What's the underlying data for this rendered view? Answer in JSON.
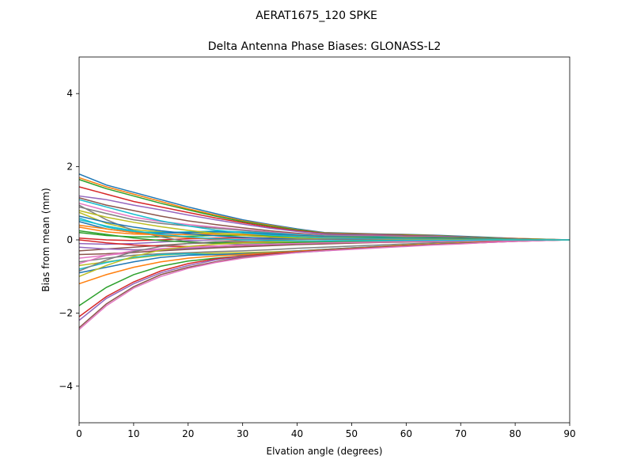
{
  "chart_data": {
    "type": "line",
    "suptitle": "AERAT1675_120   SPKE",
    "title": "Delta Antenna Phase Biases: GLONASS-L2",
    "xlabel": "Elvation angle (degrees)",
    "ylabel": "Bias from mean (mm)",
    "xlim": [
      0,
      90
    ],
    "ylim": [
      -5,
      5
    ],
    "xticks": [
      0,
      10,
      20,
      30,
      40,
      50,
      60,
      70,
      80,
      90
    ],
    "yticks": [
      -4,
      -2,
      0,
      2,
      4
    ],
    "ytick_labels": [
      "−4",
      "−2",
      "0",
      "2",
      "4"
    ],
    "grid": false,
    "legend": "none",
    "x": [
      0,
      5,
      10,
      15,
      20,
      25,
      30,
      35,
      40,
      45,
      50,
      55,
      60,
      65,
      70,
      75,
      80,
      85,
      90
    ],
    "palette": [
      "#1f77b4",
      "#ff7f0e",
      "#2ca02c",
      "#d62728",
      "#9467bd",
      "#8c564b",
      "#e377c2",
      "#7f7f7f",
      "#bcbd22",
      "#17becf"
    ],
    "series": [
      {
        "values": [
          1.8,
          1.5,
          1.3,
          1.1,
          0.9,
          0.72,
          0.55,
          0.42,
          0.3,
          0.2,
          0.18,
          0.16,
          0.15,
          0.13,
          0.1,
          0.07,
          0.04,
          0.02,
          0.0
        ]
      },
      {
        "values": [
          1.7,
          1.45,
          1.25,
          1.05,
          0.85,
          0.68,
          0.52,
          0.4,
          0.28,
          0.19,
          0.17,
          0.15,
          0.14,
          0.12,
          0.09,
          0.06,
          0.04,
          0.02,
          0.0
        ]
      },
      {
        "values": [
          1.65,
          1.4,
          1.2,
          1.0,
          0.82,
          0.65,
          0.5,
          0.38,
          0.27,
          0.18,
          0.16,
          0.14,
          0.13,
          0.11,
          0.09,
          0.06,
          0.03,
          0.01,
          0.0
        ]
      },
      {
        "values": [
          1.45,
          1.25,
          1.05,
          0.9,
          0.75,
          0.6,
          0.47,
          0.35,
          0.25,
          0.17,
          0.15,
          0.14,
          0.12,
          0.1,
          0.08,
          0.05,
          0.03,
          0.01,
          0.0
        ]
      },
      {
        "values": [
          1.2,
          1.1,
          0.95,
          0.82,
          0.68,
          0.55,
          0.43,
          0.32,
          0.23,
          0.16,
          0.14,
          0.13,
          0.11,
          0.1,
          0.08,
          0.05,
          0.03,
          0.01,
          0.0
        ]
      },
      {
        "values": [
          1.15,
          0.95,
          0.8,
          0.65,
          0.52,
          0.42,
          0.33,
          0.25,
          0.18,
          0.13,
          0.12,
          0.11,
          0.1,
          0.09,
          0.07,
          0.05,
          0.03,
          0.01,
          0.0
        ]
      },
      {
        "values": [
          1.0,
          0.8,
          0.62,
          0.5,
          0.42,
          0.35,
          0.28,
          0.22,
          0.16,
          0.12,
          0.11,
          0.1,
          0.09,
          0.08,
          0.06,
          0.04,
          0.02,
          0.01,
          0.0
        ]
      },
      {
        "values": [
          0.9,
          0.72,
          0.55,
          0.45,
          0.38,
          0.32,
          0.26,
          0.2,
          0.15,
          0.11,
          0.1,
          0.09,
          0.08,
          0.07,
          0.06,
          0.04,
          0.02,
          0.01,
          0.0
        ]
      },
      {
        "values": [
          0.75,
          0.45,
          0.28,
          0.22,
          0.2,
          0.18,
          0.16,
          0.14,
          0.12,
          0.1,
          0.09,
          0.08,
          0.07,
          0.06,
          0.05,
          0.03,
          0.02,
          0.01,
          0.0
        ]
      },
      {
        "values": [
          0.6,
          0.35,
          0.22,
          0.2,
          0.22,
          0.24,
          0.22,
          0.18,
          0.14,
          0.1,
          0.09,
          0.08,
          0.07,
          0.06,
          0.05,
          0.03,
          0.02,
          0.01,
          0.0
        ]
      },
      {
        "values": [
          0.5,
          0.3,
          0.2,
          0.18,
          0.2,
          0.22,
          0.2,
          0.16,
          0.12,
          0.09,
          0.08,
          0.07,
          0.07,
          0.06,
          0.05,
          0.03,
          0.02,
          0.01,
          0.0
        ]
      },
      {
        "values": [
          0.35,
          0.22,
          0.16,
          0.14,
          0.15,
          0.16,
          0.15,
          0.12,
          0.1,
          0.07,
          0.07,
          0.06,
          0.06,
          0.05,
          0.04,
          0.03,
          0.02,
          0.01,
          0.0
        ]
      },
      {
        "values": [
          0.2,
          0.12,
          0.08,
          0.08,
          0.1,
          0.12,
          0.12,
          0.1,
          0.08,
          0.06,
          0.06,
          0.06,
          0.05,
          0.05,
          0.04,
          0.03,
          0.02,
          0.01,
          0.0
        ]
      },
      {
        "values": [
          0.05,
          0.0,
          -0.02,
          0.0,
          0.03,
          0.05,
          0.06,
          0.05,
          0.04,
          0.03,
          0.03,
          0.03,
          0.03,
          0.03,
          0.02,
          0.02,
          0.01,
          0.0,
          0.0
        ]
      },
      {
        "values": [
          -0.1,
          -0.12,
          -0.1,
          -0.06,
          -0.02,
          0.0,
          0.02,
          0.02,
          0.02,
          0.02,
          0.02,
          0.02,
          0.02,
          0.02,
          0.02,
          0.01,
          0.01,
          0.0,
          0.0
        ]
      },
      {
        "values": [
          -0.3,
          -0.25,
          -0.2,
          -0.15,
          -0.1,
          -0.08,
          -0.06,
          -0.05,
          -0.04,
          -0.03,
          -0.02,
          -0.02,
          -0.01,
          -0.01,
          -0.01,
          0.0,
          0.0,
          0.0,
          0.0
        ]
      },
      {
        "values": [
          -0.5,
          -0.42,
          -0.35,
          -0.28,
          -0.22,
          -0.18,
          -0.15,
          -0.12,
          -0.1,
          -0.08,
          -0.06,
          -0.05,
          -0.04,
          -0.03,
          -0.02,
          -0.01,
          0.0,
          0.0,
          0.0
        ]
      },
      {
        "values": [
          -0.6,
          -0.5,
          -0.42,
          -0.38,
          -0.35,
          -0.32,
          -0.3,
          -0.27,
          -0.23,
          -0.2,
          -0.17,
          -0.14,
          -0.11,
          -0.08,
          -0.06,
          -0.04,
          -0.02,
          -0.01,
          0.0
        ]
      },
      {
        "values": [
          -0.7,
          -0.6,
          -0.5,
          -0.42,
          -0.38,
          -0.36,
          -0.35,
          -0.33,
          -0.3,
          -0.26,
          -0.22,
          -0.18,
          -0.14,
          -0.11,
          -0.08,
          -0.05,
          -0.03,
          -0.01,
          0.0
        ]
      },
      {
        "values": [
          -0.8,
          -0.62,
          -0.48,
          -0.4,
          -0.38,
          -0.4,
          -0.42,
          -0.4,
          -0.35,
          -0.3,
          -0.25,
          -0.2,
          -0.16,
          -0.12,
          -0.09,
          -0.06,
          -0.03,
          -0.01,
          0.0
        ]
      },
      {
        "values": [
          -0.9,
          -0.75,
          -0.6,
          -0.48,
          -0.42,
          -0.4,
          -0.38,
          -0.35,
          -0.3,
          -0.26,
          -0.22,
          -0.18,
          -0.15,
          -0.12,
          -0.09,
          -0.06,
          -0.03,
          -0.01,
          0.0
        ]
      },
      {
        "values": [
          -1.2,
          -0.95,
          -0.75,
          -0.6,
          -0.5,
          -0.44,
          -0.4,
          -0.36,
          -0.31,
          -0.27,
          -0.23,
          -0.19,
          -0.15,
          -0.12,
          -0.09,
          -0.06,
          -0.03,
          -0.01,
          0.0
        ]
      },
      {
        "values": [
          -1.8,
          -1.3,
          -0.95,
          -0.72,
          -0.58,
          -0.5,
          -0.44,
          -0.38,
          -0.33,
          -0.28,
          -0.24,
          -0.2,
          -0.16,
          -0.13,
          -0.1,
          -0.06,
          -0.03,
          -0.01,
          0.0
        ]
      },
      {
        "values": [
          -2.1,
          -1.55,
          -1.15,
          -0.85,
          -0.65,
          -0.52,
          -0.44,
          -0.38,
          -0.33,
          -0.28,
          -0.24,
          -0.2,
          -0.16,
          -0.13,
          -0.1,
          -0.06,
          -0.03,
          -0.01,
          0.0
        ]
      },
      {
        "values": [
          -2.2,
          -1.6,
          -1.2,
          -0.9,
          -0.7,
          -0.55,
          -0.46,
          -0.4,
          -0.34,
          -0.29,
          -0.25,
          -0.21,
          -0.17,
          -0.13,
          -0.1,
          -0.07,
          -0.04,
          -0.02,
          0.0
        ]
      },
      {
        "values": [
          -2.4,
          -1.75,
          -1.28,
          -0.95,
          -0.75,
          -0.6,
          -0.48,
          -0.4,
          -0.34,
          -0.29,
          -0.25,
          -0.21,
          -0.17,
          -0.13,
          -0.1,
          -0.07,
          -0.04,
          -0.02,
          0.0
        ]
      },
      {
        "values": [
          -2.45,
          -1.8,
          -1.32,
          -1.0,
          -0.78,
          -0.62,
          -0.5,
          -0.42,
          -0.35,
          -0.3,
          -0.26,
          -0.22,
          -0.18,
          -0.14,
          -0.11,
          -0.07,
          -0.04,
          -0.02,
          0.0
        ]
      },
      {
        "values": [
          0.95,
          0.55,
          0.25,
          0.08,
          -0.05,
          -0.1,
          -0.12,
          -0.12,
          -0.1,
          -0.08,
          -0.06,
          -0.05,
          -0.04,
          -0.03,
          -0.02,
          -0.01,
          0.0,
          0.0,
          0.0
        ]
      },
      {
        "values": [
          0.8,
          0.62,
          0.48,
          0.36,
          0.26,
          0.18,
          0.12,
          0.08,
          0.05,
          0.03,
          0.02,
          0.02,
          0.02,
          0.02,
          0.01,
          0.01,
          0.0,
          0.0,
          0.0
        ]
      },
      {
        "values": [
          1.1,
          0.9,
          0.7,
          0.52,
          0.38,
          0.27,
          0.19,
          0.13,
          0.09,
          0.06,
          0.05,
          0.04,
          0.04,
          0.03,
          0.02,
          0.02,
          0.01,
          0.0,
          0.0
        ]
      },
      {
        "values": [
          0.65,
          0.48,
          0.35,
          0.25,
          0.17,
          0.11,
          0.07,
          0.04,
          0.02,
          0.01,
          0.01,
          0.01,
          0.01,
          0.01,
          0.01,
          0.0,
          0.0,
          0.0,
          0.0
        ]
      },
      {
        "values": [
          0.4,
          0.3,
          0.2,
          0.12,
          0.06,
          0.02,
          0.0,
          -0.02,
          -0.03,
          -0.03,
          -0.03,
          -0.02,
          -0.02,
          -0.02,
          -0.01,
          -0.01,
          0.0,
          0.0,
          0.0
        ]
      },
      {
        "values": [
          0.25,
          0.15,
          0.05,
          -0.02,
          -0.06,
          -0.08,
          -0.08,
          -0.08,
          -0.07,
          -0.06,
          -0.05,
          -0.04,
          -0.03,
          -0.03,
          -0.02,
          -0.01,
          -0.01,
          0.0,
          0.0
        ]
      },
      {
        "values": [
          0.0,
          -0.08,
          -0.14,
          -0.17,
          -0.18,
          -0.17,
          -0.15,
          -0.13,
          -0.11,
          -0.09,
          -0.08,
          -0.06,
          -0.05,
          -0.04,
          -0.03,
          -0.02,
          -0.01,
          0.0,
          0.0
        ]
      },
      {
        "values": [
          -0.2,
          -0.25,
          -0.27,
          -0.26,
          -0.24,
          -0.21,
          -0.18,
          -0.15,
          -0.12,
          -0.1,
          -0.08,
          -0.07,
          -0.05,
          -0.04,
          -0.03,
          -0.02,
          -0.01,
          0.0,
          0.0
        ]
      },
      {
        "values": [
          -0.4,
          -0.38,
          -0.34,
          -0.3,
          -0.26,
          -0.22,
          -0.19,
          -0.16,
          -0.13,
          -0.11,
          -0.09,
          -0.07,
          -0.06,
          -0.05,
          -0.03,
          -0.02,
          -0.01,
          0.0,
          0.0
        ]
      },
      {
        "values": [
          -0.65,
          -0.42,
          -0.3,
          -0.24,
          -0.2,
          -0.17,
          -0.14,
          -0.12,
          -0.1,
          -0.08,
          -0.07,
          -0.06,
          -0.05,
          -0.04,
          -0.03,
          -0.02,
          -0.01,
          0.0,
          0.0
        ]
      },
      {
        "values": [
          -0.85,
          -0.55,
          -0.32,
          -0.18,
          -0.1,
          -0.05,
          -0.02,
          0.0,
          0.01,
          0.02,
          0.02,
          0.02,
          0.02,
          0.02,
          0.01,
          0.01,
          0.0,
          0.0,
          0.0
        ]
      },
      {
        "values": [
          -1.0,
          -0.7,
          -0.45,
          -0.28,
          -0.18,
          -0.12,
          -0.08,
          -0.06,
          -0.04,
          -0.03,
          -0.02,
          -0.01,
          0.0,
          0.0,
          0.0,
          0.0,
          0.0,
          0.0,
          0.0
        ]
      },
      {
        "values": [
          0.55,
          0.38,
          0.25,
          0.15,
          0.08,
          0.03,
          0.0,
          -0.02,
          -0.03,
          -0.03,
          -0.02,
          -0.02,
          -0.01,
          -0.01,
          -0.01,
          0.0,
          0.0,
          0.0,
          0.0
        ]
      }
    ]
  }
}
